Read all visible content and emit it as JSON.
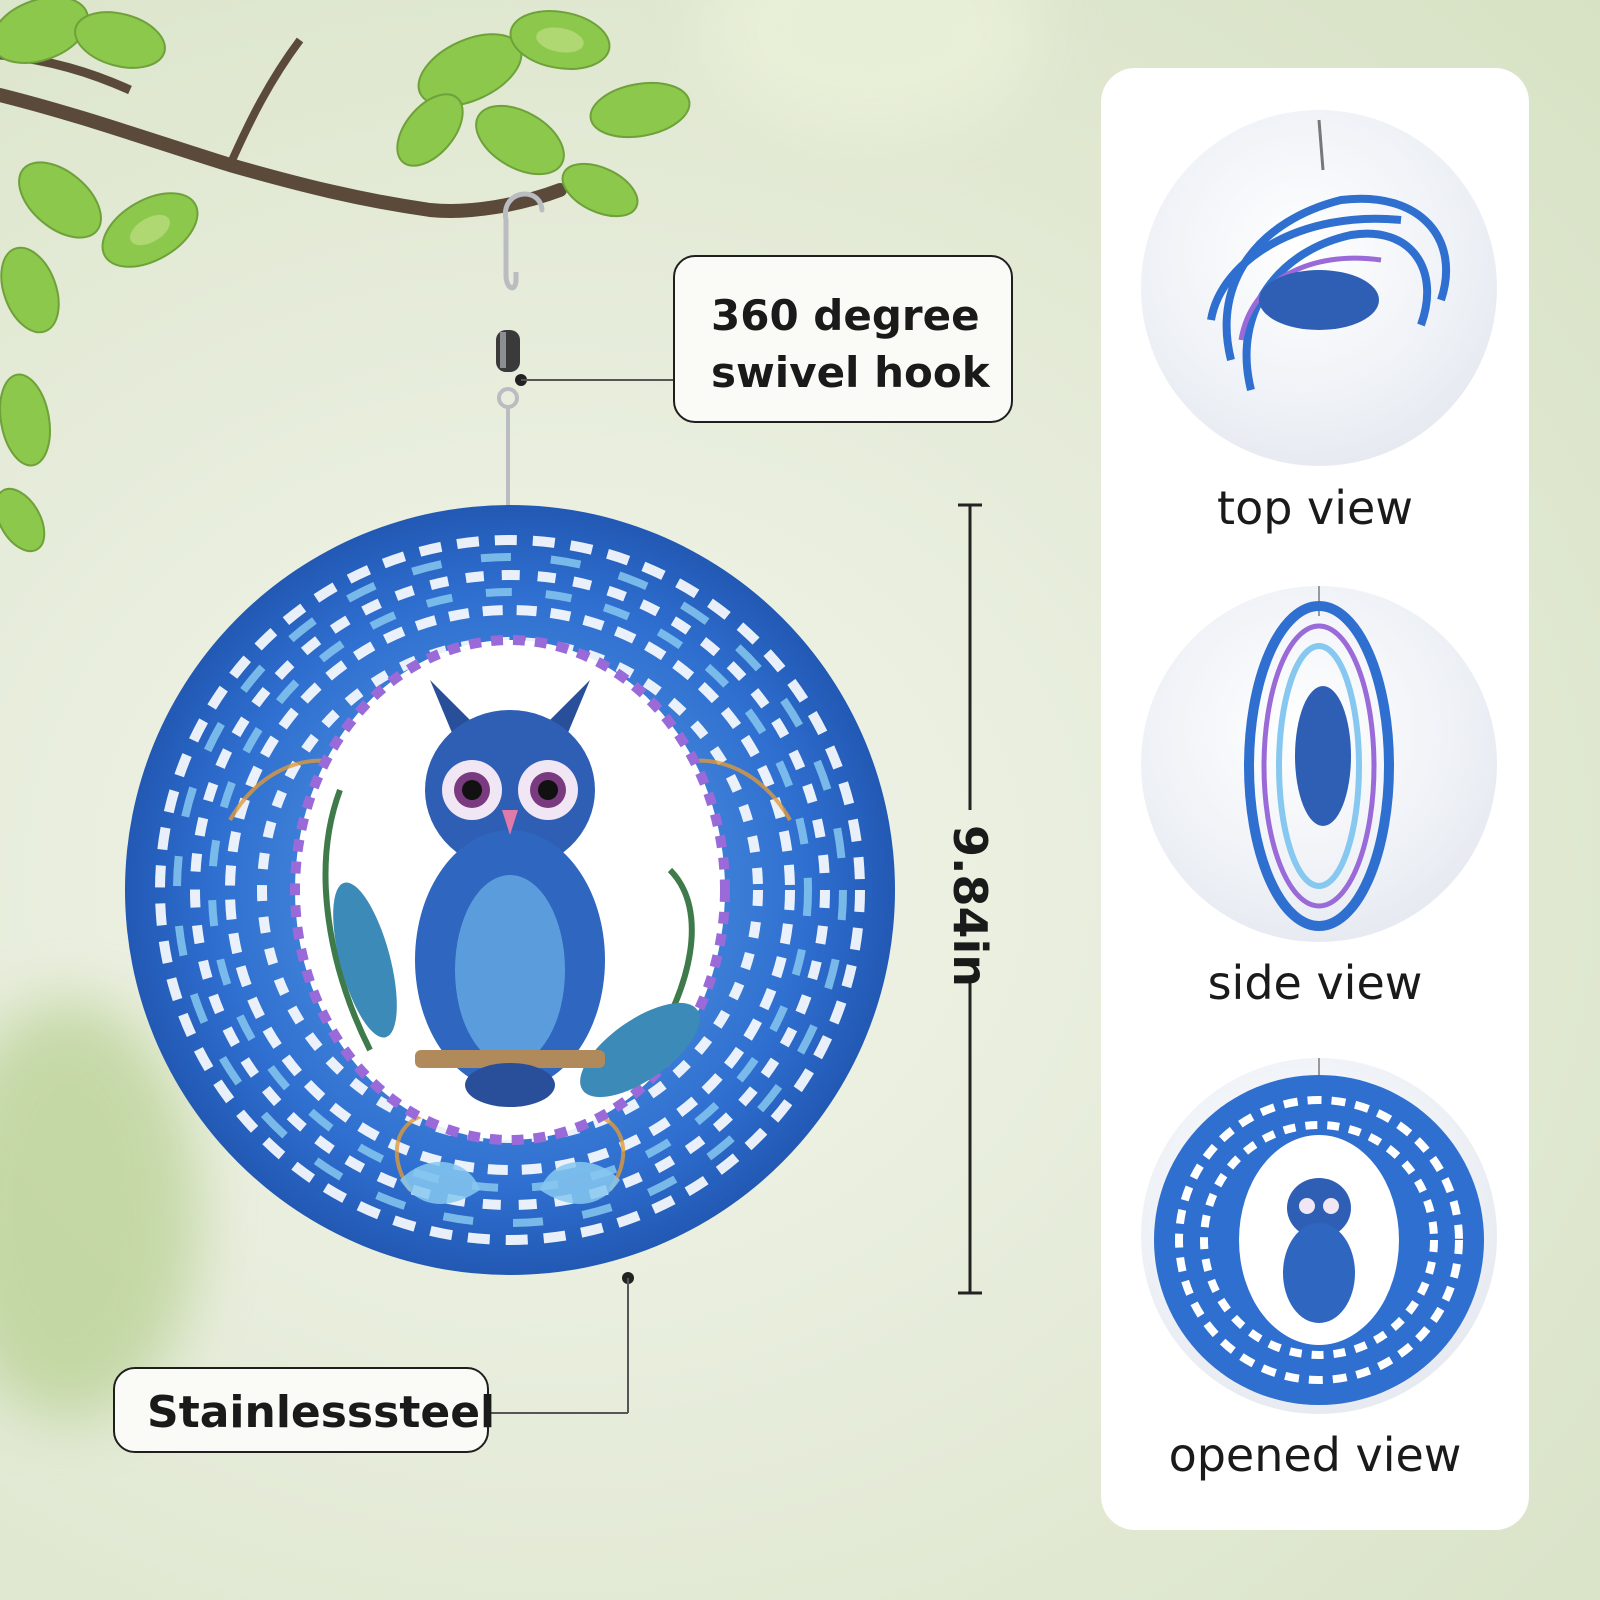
{
  "callouts": {
    "hook_line1": "360 degree",
    "hook_line2": "swivel hook",
    "material": "Stainlesssteel"
  },
  "dimension": {
    "height_label": "9.84in"
  },
  "views": [
    {
      "label": "top view"
    },
    {
      "label": "side view"
    },
    {
      "label": "opened view"
    }
  ],
  "colors": {
    "spinner_blue": "#2f6fd0",
    "spinner_light": "#86c8f0",
    "accent_purple": "#9a6ad8",
    "leaf_green": "#8cc84b",
    "branch_brown": "#5b4a3a"
  }
}
